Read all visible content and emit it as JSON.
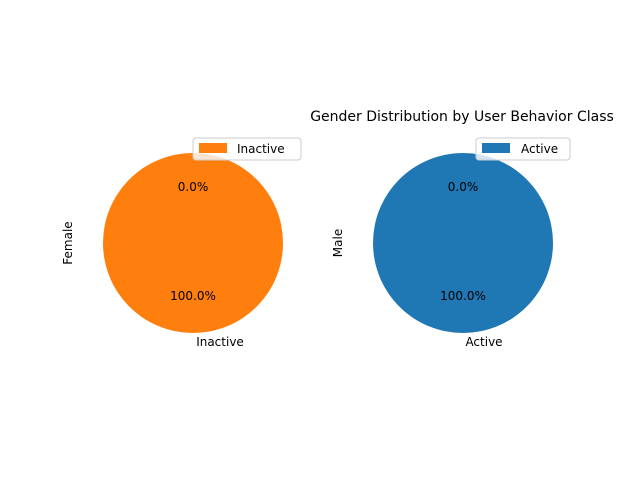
{
  "figure": {
    "title": "Gender Distribution by User Behavior Class"
  },
  "chart_data": [
    {
      "type": "pie",
      "ylabel": "Female",
      "categories": [
        "Active",
        "Inactive"
      ],
      "values": [
        0.0,
        100.0
      ],
      "pct_labels": [
        "0.0%",
        "100.0%"
      ],
      "slice_labels": [
        "",
        "Inactive"
      ],
      "colors": [
        "#1f77b4",
        "#ff7f0e"
      ],
      "legend": {
        "entries": [
          "Inactive"
        ],
        "colors": [
          "#ff7f0e"
        ],
        "placement": "top-right"
      }
    },
    {
      "type": "pie",
      "ylabel": "Male",
      "categories": [
        "Active",
        "Inactive"
      ],
      "values": [
        100.0,
        0.0
      ],
      "pct_labels": [
        "100.0%",
        "0.0%"
      ],
      "slice_labels": [
        "Active",
        ""
      ],
      "colors": [
        "#1f77b4",
        "#ff7f0e"
      ],
      "legend": {
        "entries": [
          "Active"
        ],
        "colors": [
          "#1f77b4"
        ],
        "placement": "top-right"
      }
    }
  ]
}
